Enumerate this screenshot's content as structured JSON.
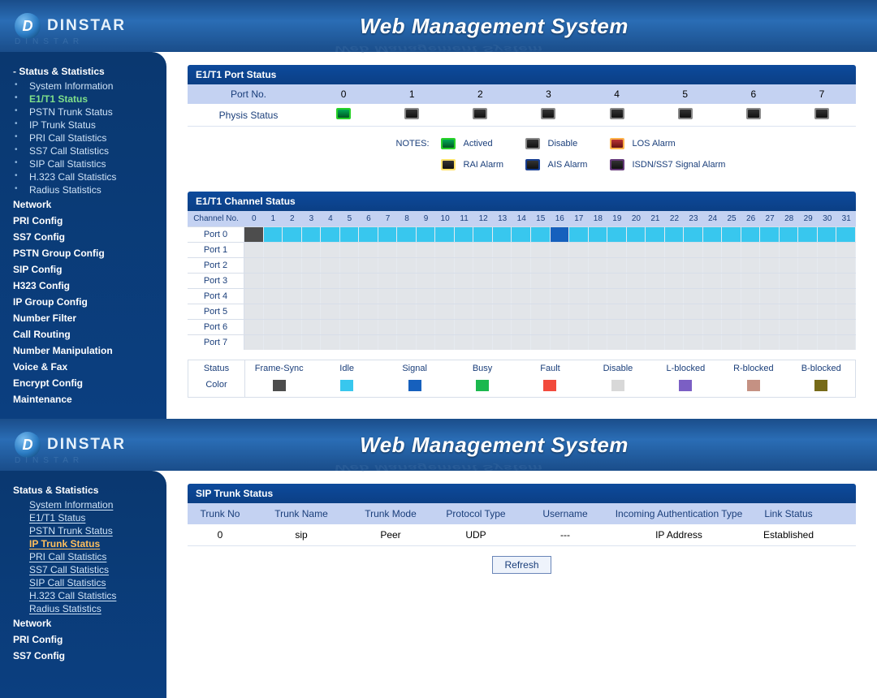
{
  "brand": {
    "name": "DINSTAR",
    "initial": "D",
    "reflect": "DINSTAR"
  },
  "header": {
    "title": "Web Management System"
  },
  "sidebar1": {
    "groups": [
      {
        "label": "Status & Statistics",
        "expanded": true,
        "items": [
          "System Information",
          "E1/T1 Status",
          "PSTN Trunk Status",
          "IP Trunk Status",
          "PRI Call Statistics",
          "SS7 Call Statistics",
          "SIP Call Statistics",
          "H.323 Call Statistics",
          "Radius Statistics"
        ],
        "activeIndex": 1
      },
      {
        "label": "Network"
      },
      {
        "label": "PRI Config"
      },
      {
        "label": "SS7 Config"
      },
      {
        "label": "PSTN Group Config"
      },
      {
        "label": "SIP Config"
      },
      {
        "label": "H323 Config"
      },
      {
        "label": "IP Group Config"
      },
      {
        "label": "Number Filter"
      },
      {
        "label": "Call Routing"
      },
      {
        "label": "Number Manipulation"
      },
      {
        "label": "Voice & Fax"
      },
      {
        "label": "Encrypt Config"
      },
      {
        "label": "Maintenance"
      }
    ]
  },
  "sidebar2": {
    "groups": [
      {
        "label": "Status & Statistics",
        "expanded": true,
        "items": [
          "System Information",
          "E1/T1 Status",
          "PSTN Trunk Status",
          "IP Trunk Status",
          "PRI Call Statistics",
          "SS7 Call Statistics",
          "SIP Call Statistics",
          "H.323 Call Statistics",
          "Radius Statistics"
        ],
        "activeIndex": 3
      },
      {
        "label": "Network"
      },
      {
        "label": "PRI Config"
      },
      {
        "label": "SS7 Config"
      }
    ]
  },
  "portStatus": {
    "title": "E1/T1 Port Status",
    "col0": "Port No.",
    "ports": [
      "0",
      "1",
      "2",
      "3",
      "4",
      "5",
      "6",
      "7"
    ],
    "physisLabel": "Physis Status",
    "physis": [
      "actived",
      "disable",
      "disable",
      "disable",
      "disable",
      "disable",
      "disable",
      "disable"
    ],
    "notesLabel": "NOTES:",
    "legend": [
      {
        "key": "actived",
        "label": "Actived"
      },
      {
        "key": "disable",
        "label": "Disable"
      },
      {
        "key": "los",
        "label": "LOS Alarm"
      },
      {
        "key": "rai",
        "label": "RAI Alarm"
      },
      {
        "key": "ais",
        "label": "AIS Alarm"
      },
      {
        "key": "isdn",
        "label": "ISDN/SS7 Signal Alarm"
      }
    ]
  },
  "channelStatus": {
    "title": "E1/T1 Channel Status",
    "channelHead": "Channel No.",
    "channels": 32,
    "ports": [
      "Port 0",
      "Port 1",
      "Port 2",
      "Port 3",
      "Port 4",
      "Port 5",
      "Port 6",
      "Port 7"
    ],
    "cells": {
      "Port 0": {
        "default": "idle",
        "overrides": {
          "0": "framesync",
          "16": "signal"
        }
      }
    },
    "colors": {
      "framesync": "#4d4d4d",
      "idle": "#38c7ee",
      "signal": "#1660bd",
      "busy": "#1bb84e",
      "fault": "#f24a3c",
      "disable": "#d8d8d8",
      "lblocked": "#7b5fc4",
      "rblocked": "#c59183",
      "bblocked": "#766a18",
      "empty": "#e2e5e9"
    },
    "statusStrip": {
      "labels": {
        "status": "Status",
        "color": "Color"
      },
      "items": [
        {
          "name": "Frame-Sync",
          "color": "#4d4d4d"
        },
        {
          "name": "Idle",
          "color": "#38c7ee"
        },
        {
          "name": "Signal",
          "color": "#1660bd"
        },
        {
          "name": "Busy",
          "color": "#1bb84e"
        },
        {
          "name": "Fault",
          "color": "#f24a3c"
        },
        {
          "name": "Disable",
          "color": "#d8d8d8"
        },
        {
          "name": "L-blocked",
          "color": "#7b5fc4"
        },
        {
          "name": "R-blocked",
          "color": "#c59183"
        },
        {
          "name": "B-blocked",
          "color": "#766a18"
        }
      ]
    }
  },
  "sipTrunk": {
    "title": "SIP Trunk Status",
    "columns": [
      "Trunk No",
      "Trunk Name",
      "Trunk Mode",
      "Protocol Type",
      "Username",
      "Incoming Authentication Type",
      "Link Status"
    ],
    "rows": [
      [
        "0",
        "sip",
        "Peer",
        "UDP",
        "---",
        "IP Address",
        "Established"
      ]
    ],
    "refreshLabel": "Refresh"
  }
}
